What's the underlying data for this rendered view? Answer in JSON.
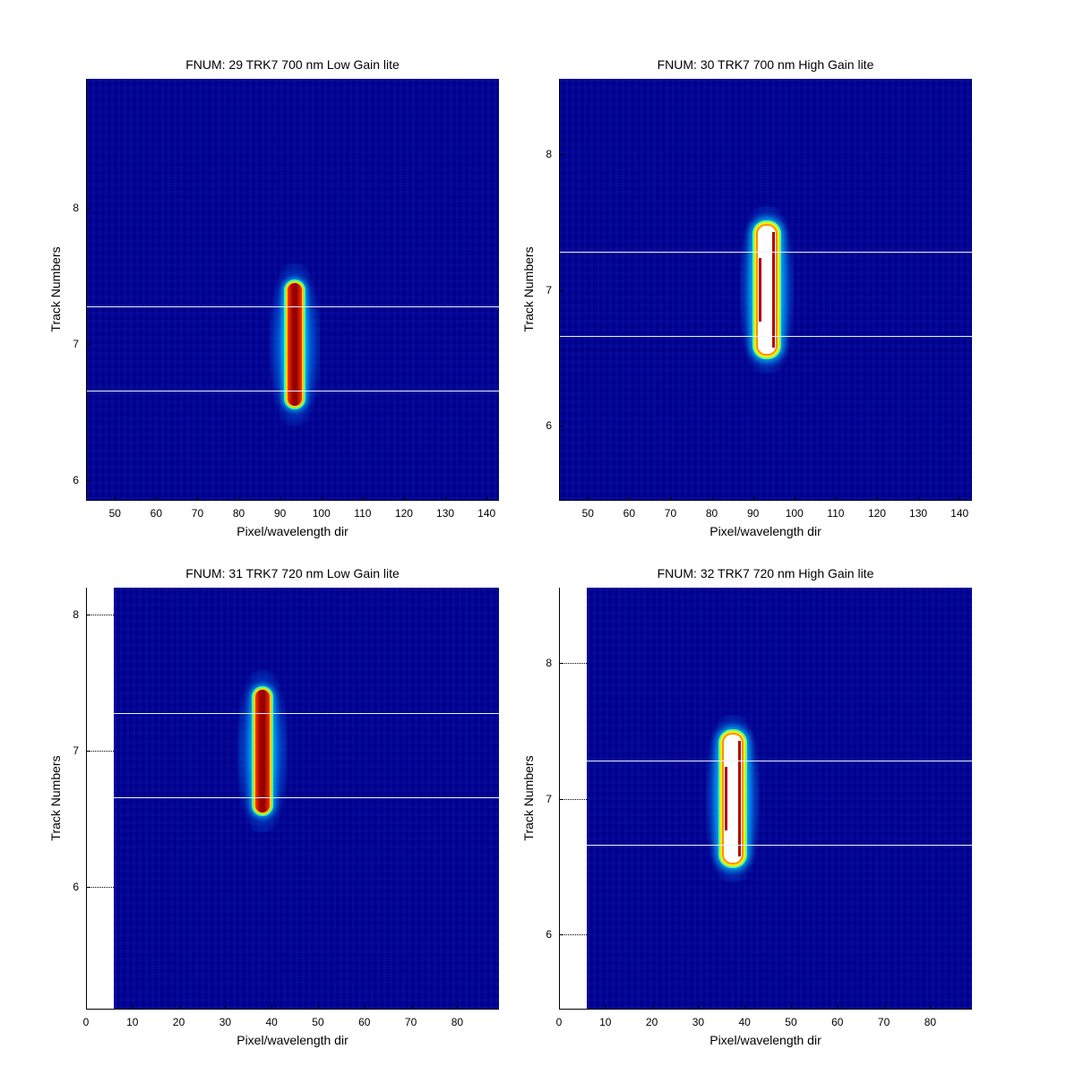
{
  "chart_data": [
    {
      "type": "heatmap",
      "title": "FNUM: 29 TRK7 700 nm Low Gain lite",
      "xlabel": "Pixel/wavelength dir",
      "ylabel": "Track Numbers",
      "xlim": [
        43,
        143
      ],
      "ylim": [
        5.85,
        8.95
      ],
      "xticks": [
        "50",
        "60",
        "70",
        "80",
        "90",
        "100",
        "110",
        "120",
        "130",
        "140"
      ],
      "yticks": [
        "6",
        "7",
        "8"
      ],
      "image_xlim": [
        43,
        143
      ],
      "spot": {
        "x": 93.5,
        "y_min": 6.55,
        "y_max": 7.45,
        "gain": "low"
      },
      "track_lines": [
        7.28,
        6.66
      ],
      "colors": {
        "background": "#00008f",
        "peak": "#8c0000"
      }
    },
    {
      "type": "heatmap",
      "title": "FNUM: 30 TRK7 700 nm High Gain lite",
      "xlabel": "Pixel/wavelength dir",
      "ylabel": "Track Numbers",
      "xlim": [
        43,
        143
      ],
      "ylim": [
        5.45,
        8.55
      ],
      "xticks": [
        "50",
        "60",
        "70",
        "80",
        "90",
        "100",
        "110",
        "120",
        "130",
        "140"
      ],
      "yticks": [
        "6",
        "7",
        "8"
      ],
      "image_xlim": [
        43,
        143
      ],
      "spot": {
        "x": 93.3,
        "y_min": 6.53,
        "y_max": 7.47,
        "gain": "high"
      },
      "track_lines": [
        7.28,
        6.66
      ],
      "colors": {
        "background": "#00008f",
        "peak": "#ffffff"
      }
    },
    {
      "type": "heatmap",
      "title": "FNUM: 31 TRK7 720 nm Low Gain lite",
      "xlabel": "Pixel/wavelength dir",
      "ylabel": "Track Numbers",
      "xlim": [
        0,
        89
      ],
      "ylim": [
        5.1,
        8.2
      ],
      "xticks": [
        "0",
        "10",
        "20",
        "30",
        "40",
        "50",
        "60",
        "70",
        "80"
      ],
      "yticks": [
        "6",
        "7",
        "8"
      ],
      "image_xlim": [
        6,
        89
      ],
      "spot": {
        "x": 38,
        "y_min": 6.55,
        "y_max": 7.45,
        "gain": "low"
      },
      "track_lines": [
        7.28,
        6.66
      ],
      "colors": {
        "background": "#00008f",
        "peak": "#8c0000"
      }
    },
    {
      "type": "heatmap",
      "title": "FNUM: 32 TRK7 720 nm High Gain lite",
      "xlabel": "Pixel/wavelength dir",
      "ylabel": "Track Numbers",
      "xlim": [
        0,
        89
      ],
      "ylim": [
        5.45,
        8.55
      ],
      "xticks": [
        "0",
        "10",
        "20",
        "30",
        "40",
        "50",
        "60",
        "70",
        "80"
      ],
      "yticks": [
        "6",
        "7",
        "8"
      ],
      "image_xlim": [
        6,
        89
      ],
      "spot": {
        "x": 37.5,
        "y_min": 6.53,
        "y_max": 7.47,
        "gain": "high"
      },
      "track_lines": [
        7.28,
        6.66
      ],
      "colors": {
        "background": "#00008f",
        "peak": "#ffffff"
      }
    }
  ]
}
